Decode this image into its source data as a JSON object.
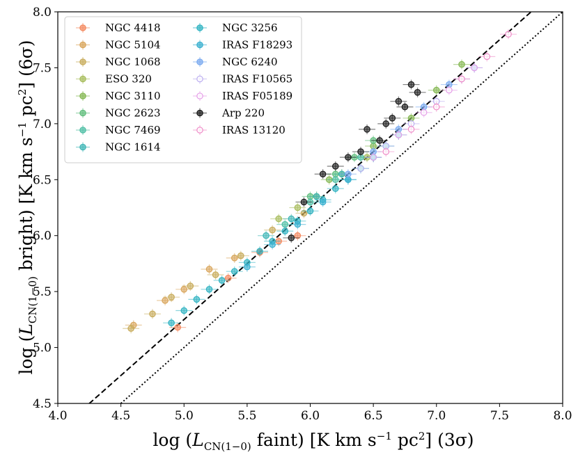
{
  "chart_data": {
    "type": "scatter",
    "title": "",
    "xlabel": "log (L_CN(1−0) faint) [K km s⁻¹ pc²] (3σ)",
    "ylabel": "log (L_CN(1−0) bright) [K km s⁻¹ pc²] (6σ)",
    "xlim": [
      4.0,
      8.0
    ],
    "ylim": [
      4.5,
      8.0
    ],
    "xticks": [
      "4.0",
      "4.5",
      "5.0",
      "5.5",
      "6.0",
      "6.5",
      "7.0",
      "7.5",
      "8.0"
    ],
    "yticks": [
      "4.5",
      "5.0",
      "5.5",
      "6.0",
      "6.5",
      "7.0",
      "7.5",
      "8.0"
    ],
    "legend_position": "top-left",
    "reference_lines": [
      {
        "name": "dashed",
        "style": "dashed",
        "description": "y = x + 0.25",
        "points": [
          [
            4.0,
            4.25
          ],
          [
            7.75,
            8.0
          ]
        ]
      },
      {
        "name": "dotted",
        "style": "dotted",
        "description": "y = x",
        "points": [
          [
            4.5,
            4.5
          ],
          [
            8.0,
            8.0
          ]
        ]
      }
    ],
    "series": [
      {
        "name": "NGC 4418",
        "color": "#f4895f",
        "x": [
          4.95,
          5.35,
          5.6,
          5.75,
          5.9
        ],
        "y": [
          5.18,
          5.62,
          5.85,
          5.95,
          6.0
        ]
      },
      {
        "name": "NGC 5104",
        "color": "#d9a55b",
        "x": [
          4.6,
          4.85,
          5.0,
          5.2,
          5.4
        ],
        "y": [
          5.2,
          5.42,
          5.52,
          5.7,
          5.8
        ]
      },
      {
        "name": "NGC 1068",
        "color": "#c8ac5c",
        "x": [
          4.58,
          4.75,
          4.9,
          5.05,
          5.25,
          5.45,
          5.7,
          5.95
        ],
        "y": [
          5.17,
          5.3,
          5.45,
          5.55,
          5.65,
          5.82,
          6.05,
          6.2
        ]
      },
      {
        "name": "ESO 320",
        "color": "#a8bd5d",
        "x": [
          5.75,
          5.9,
          6.05,
          6.25,
          6.45
        ],
        "y": [
          6.15,
          6.25,
          6.35,
          6.55,
          6.7
        ]
      },
      {
        "name": "NGC 3110",
        "color": "#85b853",
        "x": [
          6.15,
          6.5,
          6.8,
          7.0,
          7.2
        ],
        "y": [
          6.5,
          6.8,
          7.05,
          7.3,
          7.53
        ]
      },
      {
        "name": "NGC 2623",
        "color": "#5fbe7c",
        "x": [
          6.0,
          6.2,
          6.35,
          6.5
        ],
        "y": [
          6.35,
          6.55,
          6.7,
          6.85
        ]
      },
      {
        "name": "NGC 7469",
        "color": "#4fbfa5",
        "x": [
          5.8,
          6.0,
          6.2,
          6.4
        ],
        "y": [
          6.1,
          6.3,
          6.5,
          6.7
        ]
      },
      {
        "name": "NGC 1614",
        "color": "#3fb6b6",
        "x": [
          5.65,
          5.85,
          6.05,
          6.25
        ],
        "y": [
          6.0,
          6.15,
          6.35,
          6.55
        ]
      },
      {
        "name": "NGC 3256",
        "color": "#30b3c2",
        "x": [
          4.9,
          5.0,
          5.1,
          5.2,
          5.3,
          5.4,
          5.5,
          5.6,
          5.7,
          5.8,
          5.9,
          6.0,
          6.1,
          6.2,
          6.3,
          6.4,
          6.5,
          6.6
        ],
        "y": [
          5.22,
          5.33,
          5.43,
          5.52,
          5.6,
          5.68,
          5.76,
          5.86,
          5.95,
          6.04,
          6.13,
          6.22,
          6.32,
          6.42,
          6.5,
          6.6,
          6.7,
          6.8
        ]
      },
      {
        "name": "IRAS F18293",
        "color": "#3bb0d0",
        "x": [
          5.5,
          5.7,
          5.9,
          6.1,
          6.3,
          6.5,
          6.7
        ],
        "y": [
          5.72,
          5.92,
          6.1,
          6.3,
          6.5,
          6.7,
          6.9
        ]
      },
      {
        "name": "NGC 6240",
        "color": "#7aaaf0",
        "x": [
          6.3,
          6.5,
          6.7,
          6.9,
          7.1,
          7.3
        ],
        "y": [
          6.55,
          6.75,
          6.95,
          7.15,
          7.35,
          7.5
        ]
      },
      {
        "name": "IRAS F10565",
        "color": "#bcaef0",
        "x": [
          6.4,
          6.6,
          6.8,
          7.0,
          7.2
        ],
        "y": [
          6.6,
          6.8,
          7.0,
          7.2,
          7.4
        ]
      },
      {
        "name": "IRAS F05189",
        "color": "#e59ee8",
        "x": [
          6.5,
          6.7,
          6.9,
          7.1,
          7.3
        ],
        "y": [
          6.7,
          6.9,
          7.1,
          7.3,
          7.5
        ]
      },
      {
        "name": "Arp 220",
        "color": "#1a1a1a",
        "x": [
          5.85,
          5.95,
          6.1,
          6.2,
          6.3,
          6.4,
          6.45,
          6.55,
          6.6,
          6.65,
          6.7,
          6.75,
          6.8,
          6.85
        ],
        "y": [
          5.98,
          6.3,
          6.55,
          6.62,
          6.7,
          6.75,
          6.95,
          6.85,
          7.0,
          7.05,
          7.2,
          7.15,
          7.35,
          7.28
        ]
      },
      {
        "name": "IRAS 13120",
        "color": "#ef8cc8",
        "x": [
          6.6,
          6.8,
          7.0,
          7.2,
          7.4,
          7.57
        ],
        "y": [
          6.75,
          6.95,
          7.15,
          7.4,
          7.6,
          7.8
        ]
      }
    ]
  }
}
